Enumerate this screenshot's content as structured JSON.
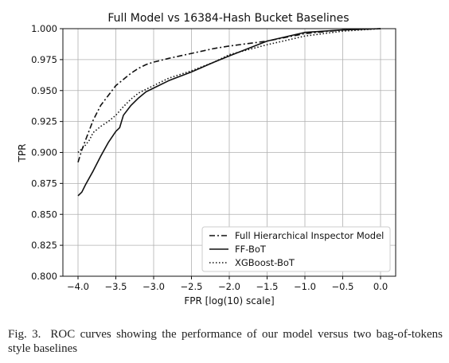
{
  "chart_data": {
    "type": "line",
    "title": "Full Model vs 16384-Hash Bucket Baselines",
    "xlabel": "FPR [log(10) scale]",
    "ylabel": "TPR",
    "xlim": [
      -4.2,
      0.2
    ],
    "ylim": [
      0.8,
      1.0
    ],
    "x_ticks": [
      -4.0,
      -3.5,
      -3.0,
      -2.5,
      -2.0,
      -1.5,
      -1.0,
      -0.5,
      0.0
    ],
    "x_tick_labels": [
      "−4.0",
      "−3.5",
      "−3.0",
      "−2.5",
      "−2.0",
      "−1.5",
      "−1.0",
      "−0.5",
      "0.0"
    ],
    "y_ticks": [
      0.8,
      0.825,
      0.85,
      0.875,
      0.9,
      0.925,
      0.95,
      0.975,
      1.0
    ],
    "y_tick_labels": [
      "0.800",
      "0.825",
      "0.850",
      "0.875",
      "0.900",
      "0.925",
      "0.950",
      "0.975",
      "1.000"
    ],
    "grid": true,
    "legend_position": "bottom-right",
    "series": [
      {
        "name": "Full Hierarchical Inspector Model",
        "style": "dashdot",
        "x": [
          -4.0,
          -3.95,
          -3.9,
          -3.8,
          -3.7,
          -3.6,
          -3.5,
          -3.4,
          -3.3,
          -3.2,
          -3.1,
          -3.0,
          -2.8,
          -2.5,
          -2.2,
          -2.0,
          -1.5,
          -1.0,
          -0.5,
          0.0
        ],
        "y": [
          0.892,
          0.902,
          0.91,
          0.926,
          0.938,
          0.946,
          0.954,
          0.959,
          0.964,
          0.968,
          0.971,
          0.973,
          0.976,
          0.98,
          0.984,
          0.986,
          0.99,
          0.996,
          0.999,
          1.0
        ]
      },
      {
        "name": "FF-BoT",
        "style": "solid",
        "x": [
          -4.0,
          -3.95,
          -3.9,
          -3.8,
          -3.7,
          -3.6,
          -3.5,
          -3.45,
          -3.4,
          -3.3,
          -3.2,
          -3.1,
          -3.0,
          -2.8,
          -2.5,
          -2.2,
          -2.0,
          -1.5,
          -1.0,
          -0.5,
          0.0
        ],
        "y": [
          0.865,
          0.868,
          0.874,
          0.885,
          0.897,
          0.908,
          0.917,
          0.92,
          0.93,
          0.938,
          0.944,
          0.949,
          0.952,
          0.958,
          0.965,
          0.973,
          0.978,
          0.99,
          0.997,
          0.999,
          1.0
        ]
      },
      {
        "name": "XGBoost-BoT",
        "style": "dotted",
        "x": [
          -4.0,
          -3.9,
          -3.85,
          -3.8,
          -3.7,
          -3.6,
          -3.5,
          -3.4,
          -3.3,
          -3.2,
          -3.1,
          -3.0,
          -2.8,
          -2.5,
          -2.2,
          -2.0,
          -1.5,
          -1.0,
          -0.5,
          0.0
        ],
        "y": [
          0.9,
          0.906,
          0.91,
          0.916,
          0.921,
          0.925,
          0.93,
          0.937,
          0.943,
          0.948,
          0.951,
          0.954,
          0.96,
          0.966,
          0.973,
          0.979,
          0.987,
          0.994,
          0.998,
          1.0
        ]
      }
    ]
  },
  "caption": {
    "label": "Fig. 3.",
    "text": "ROC curves showing the performance of our model versus two bag-of-tokens style baselines"
  }
}
